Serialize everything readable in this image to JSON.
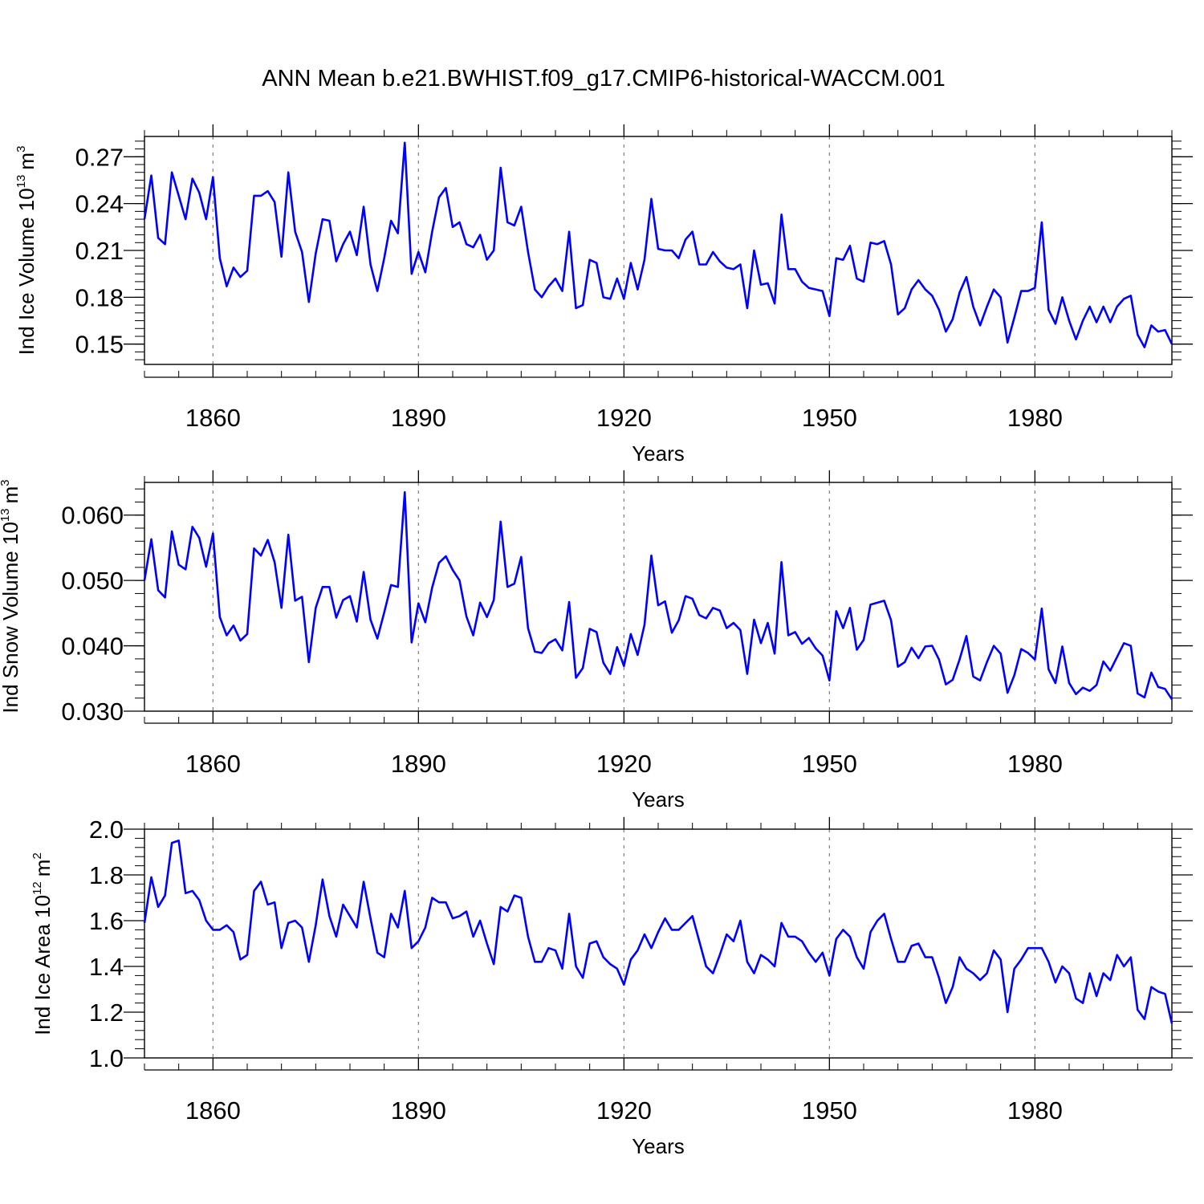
{
  "title": "ANN Mean b.e21.BWHIST.f09_g17.CMIP6-historical-WACCM.001",
  "colors": {
    "line": "#0000ff",
    "axis": "#000000",
    "gridline": "#888888"
  },
  "chart_data": [
    {
      "type": "line",
      "ylabel_main": "Ind Ice Volume 10",
      "ylabel_exp": "13",
      "ylabel_unit": "m",
      "ylabel_unit_exp": "3",
      "xlabel": "Years",
      "xlim": [
        1850,
        2000
      ],
      "ylim": [
        0.137,
        0.283
      ],
      "x_ticks": [
        1860,
        1890,
        1920,
        1950,
        1980
      ],
      "x_tick_labels": [
        "1860",
        "1890",
        "1920",
        "1950",
        "1980"
      ],
      "y_ticks": [
        0.15,
        0.18,
        0.21,
        0.24,
        0.27
      ],
      "y_tick_labels": [
        "0.15",
        "0.18",
        "0.21",
        "0.24",
        "0.27"
      ],
      "y_minor_step": 0.005,
      "x_start": 1850,
      "series": [
        {
          "name": "Ind Ice Volume",
          "values": [
            0.23,
            0.258,
            0.218,
            0.214,
            0.26,
            0.245,
            0.23,
            0.256,
            0.247,
            0.23,
            0.257,
            0.205,
            0.187,
            0.199,
            0.193,
            0.197,
            0.245,
            0.245,
            0.248,
            0.241,
            0.206,
            0.26,
            0.222,
            0.209,
            0.177,
            0.208,
            0.23,
            0.229,
            0.203,
            0.214,
            0.222,
            0.207,
            0.238,
            0.201,
            0.184,
            0.205,
            0.229,
            0.221,
            0.279,
            0.195,
            0.209,
            0.196,
            0.222,
            0.244,
            0.25,
            0.225,
            0.228,
            0.214,
            0.212,
            0.22,
            0.204,
            0.21,
            0.263,
            0.228,
            0.226,
            0.238,
            0.209,
            0.185,
            0.18,
            0.187,
            0.192,
            0.184,
            0.222,
            0.173,
            0.175,
            0.204,
            0.202,
            0.18,
            0.179,
            0.192,
            0.179,
            0.202,
            0.185,
            0.204,
            0.243,
            0.211,
            0.21,
            0.21,
            0.205,
            0.217,
            0.222,
            0.201,
            0.201,
            0.209,
            0.203,
            0.199,
            0.198,
            0.201,
            0.173,
            0.21,
            0.188,
            0.189,
            0.176,
            0.233,
            0.198,
            0.198,
            0.19,
            0.186,
            0.185,
            0.184,
            0.168,
            0.205,
            0.204,
            0.213,
            0.192,
            0.19,
            0.215,
            0.214,
            0.216,
            0.201,
            0.169,
            0.173,
            0.185,
            0.191,
            0.185,
            0.181,
            0.172,
            0.158,
            0.166,
            0.183,
            0.193,
            0.174,
            0.162,
            0.174,
            0.185,
            0.18,
            0.151,
            0.167,
            0.184,
            0.184,
            0.186,
            0.228,
            0.172,
            0.163,
            0.18,
            0.165,
            0.153,
            0.165,
            0.174,
            0.164,
            0.174,
            0.164,
            0.174,
            0.179,
            0.181,
            0.156,
            0.148,
            0.162,
            0.158,
            0.159,
            0.15
          ]
        }
      ]
    },
    {
      "type": "line",
      "ylabel_main": "Ind Snow Volume 10",
      "ylabel_exp": "13",
      "ylabel_unit": "m",
      "ylabel_unit_exp": "3",
      "xlabel": "Years",
      "xlim": [
        1850,
        2000
      ],
      "ylim": [
        0.03,
        0.065
      ],
      "x_ticks": [
        1860,
        1890,
        1920,
        1950,
        1980
      ],
      "x_tick_labels": [
        "1860",
        "1890",
        "1920",
        "1950",
        "1980"
      ],
      "y_ticks": [
        0.03,
        0.04,
        0.05,
        0.06
      ],
      "y_tick_labels": [
        "0.030",
        "0.040",
        "0.050",
        "0.060"
      ],
      "y_minor_step": 0.002,
      "x_start": 1850,
      "series": [
        {
          "name": "Ind Snow Volume",
          "values": [
            0.05,
            0.0563,
            0.0485,
            0.0474,
            0.0575,
            0.0524,
            0.0517,
            0.0582,
            0.0565,
            0.0521,
            0.0572,
            0.0444,
            0.0416,
            0.0431,
            0.0408,
            0.0418,
            0.0549,
            0.0538,
            0.0562,
            0.0528,
            0.0458,
            0.057,
            0.0469,
            0.0475,
            0.0375,
            0.0458,
            0.049,
            0.049,
            0.0443,
            0.047,
            0.0476,
            0.0437,
            0.0513,
            0.044,
            0.0411,
            0.0451,
            0.0493,
            0.049,
            0.0635,
            0.0405,
            0.0465,
            0.0436,
            0.0489,
            0.0527,
            0.0537,
            0.0516,
            0.05,
            0.0445,
            0.0416,
            0.0466,
            0.0444,
            0.047,
            0.059,
            0.049,
            0.0495,
            0.0536,
            0.0427,
            0.0391,
            0.0389,
            0.0404,
            0.041,
            0.0393,
            0.0467,
            0.0351,
            0.0366,
            0.0426,
            0.0421,
            0.0374,
            0.0357,
            0.0398,
            0.0369,
            0.0418,
            0.0386,
            0.0432,
            0.0538,
            0.0462,
            0.0468,
            0.042,
            0.0439,
            0.0476,
            0.0472,
            0.0447,
            0.0442,
            0.0458,
            0.0454,
            0.0427,
            0.0435,
            0.0424,
            0.0357,
            0.044,
            0.0404,
            0.0435,
            0.0388,
            0.0528,
            0.0416,
            0.0421,
            0.0403,
            0.0412,
            0.0396,
            0.0385,
            0.0347,
            0.0453,
            0.0427,
            0.0458,
            0.0394,
            0.0409,
            0.0463,
            0.0466,
            0.0469,
            0.0439,
            0.0368,
            0.0375,
            0.0397,
            0.0381,
            0.0399,
            0.04,
            0.0379,
            0.0341,
            0.0348,
            0.0379,
            0.0415,
            0.0353,
            0.0347,
            0.0375,
            0.04,
            0.0388,
            0.0328,
            0.0355,
            0.0395,
            0.0389,
            0.0379,
            0.0457,
            0.0364,
            0.0343,
            0.0399,
            0.0343,
            0.0326,
            0.0336,
            0.0331,
            0.034,
            0.0376,
            0.0362,
            0.0383,
            0.0404,
            0.04,
            0.0327,
            0.0321,
            0.0359,
            0.0337,
            0.0334,
            0.0318
          ]
        }
      ]
    },
    {
      "type": "line",
      "ylabel_main": "Ind Ice Area 10",
      "ylabel_exp": "12",
      "ylabel_unit": "m",
      "ylabel_unit_exp": "2",
      "xlabel": "Years",
      "xlim": [
        1850,
        2000
      ],
      "ylim": [
        1.0,
        2.0
      ],
      "x_ticks": [
        1860,
        1890,
        1920,
        1950,
        1980
      ],
      "x_tick_labels": [
        "1860",
        "1890",
        "1920",
        "1950",
        "1980"
      ],
      "y_ticks": [
        1.0,
        1.2,
        1.4,
        1.6,
        1.8,
        2.0
      ],
      "y_tick_labels": [
        "1.0",
        "1.2",
        "1.4",
        "1.6",
        "1.8",
        "2.0"
      ],
      "y_minor_step": 0.04,
      "x_start": 1850,
      "series": [
        {
          "name": "Ind Ice Area",
          "values": [
            1.59,
            1.79,
            1.66,
            1.71,
            1.94,
            1.95,
            1.72,
            1.73,
            1.69,
            1.6,
            1.56,
            1.56,
            1.58,
            1.55,
            1.43,
            1.45,
            1.73,
            1.77,
            1.67,
            1.68,
            1.48,
            1.59,
            1.6,
            1.57,
            1.42,
            1.58,
            1.78,
            1.62,
            1.53,
            1.67,
            1.62,
            1.57,
            1.77,
            1.61,
            1.46,
            1.44,
            1.63,
            1.57,
            1.73,
            1.48,
            1.51,
            1.57,
            1.7,
            1.68,
            1.68,
            1.61,
            1.62,
            1.64,
            1.53,
            1.6,
            1.5,
            1.41,
            1.66,
            1.64,
            1.71,
            1.7,
            1.53,
            1.42,
            1.42,
            1.48,
            1.47,
            1.39,
            1.63,
            1.4,
            1.35,
            1.5,
            1.51,
            1.44,
            1.41,
            1.39,
            1.32,
            1.43,
            1.47,
            1.54,
            1.48,
            1.55,
            1.61,
            1.56,
            1.56,
            1.59,
            1.62,
            1.51,
            1.4,
            1.37,
            1.45,
            1.54,
            1.51,
            1.6,
            1.42,
            1.37,
            1.45,
            1.43,
            1.4,
            1.59,
            1.53,
            1.53,
            1.51,
            1.46,
            1.42,
            1.46,
            1.36,
            1.52,
            1.56,
            1.53,
            1.44,
            1.39,
            1.55,
            1.6,
            1.63,
            1.52,
            1.42,
            1.42,
            1.49,
            1.5,
            1.44,
            1.44,
            1.35,
            1.24,
            1.31,
            1.44,
            1.39,
            1.37,
            1.34,
            1.37,
            1.47,
            1.43,
            1.2,
            1.39,
            1.43,
            1.48,
            1.48,
            1.48,
            1.42,
            1.33,
            1.4,
            1.37,
            1.26,
            1.24,
            1.37,
            1.27,
            1.37,
            1.34,
            1.45,
            1.4,
            1.44,
            1.21,
            1.17,
            1.31,
            1.29,
            1.28,
            1.15
          ]
        }
      ]
    }
  ]
}
